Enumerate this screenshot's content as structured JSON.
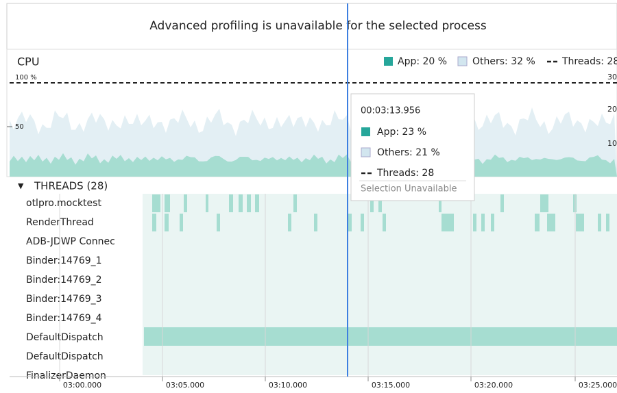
{
  "banner": {
    "text": "Advanced profiling is unavailable for the selected process"
  },
  "cpu": {
    "title": "CPU",
    "legend": [
      "App: 20 %",
      "Others: 32 %",
      "Threads: 28"
    ],
    "left_axis": [
      "100 %",
      "50"
    ],
    "right_axis": [
      "30",
      "20",
      "10"
    ]
  },
  "tooltip": {
    "time": "00:03:13.956",
    "app": "App: 23 %",
    "others": "Others: 21 %",
    "threads": "Threads: 28",
    "note": "Selection Unavailable"
  },
  "threads": {
    "header": "THREADS (28)",
    "names": [
      "otlpro.mocktest",
      "RenderThread",
      "ADB-JDWP Connec",
      "Binder:14769_1",
      "Binder:14769_2",
      "Binder:14769_3",
      "Binder:14769_4",
      "DefaultDispatch",
      "DefaultDispatch",
      "FinalizerDaemon"
    ]
  },
  "time_axis": [
    "03:00.000",
    "03:05.000",
    "03:10.000",
    "03:15.000",
    "03:20.000",
    "03:25.000"
  ]
}
